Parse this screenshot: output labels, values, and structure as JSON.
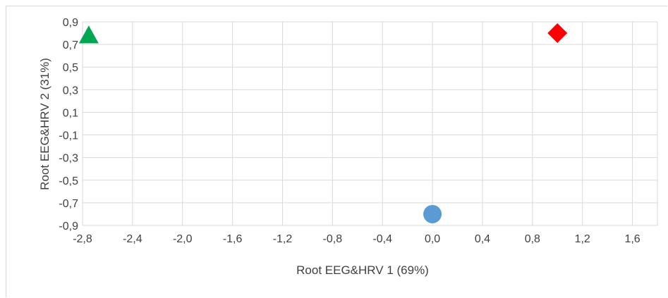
{
  "chart_data": {
    "type": "scatter",
    "xlabel": "Root EEG&HRV 1 (69%)",
    "ylabel": "Root EEG&HRV 2 (31%)",
    "xlim": [
      -2.8,
      1.8
    ],
    "ylim": [
      -0.9,
      0.9
    ],
    "x_ticks": [
      "-2,8",
      "-2,4",
      "-2,0",
      "-1,6",
      "-1,2",
      "-0,8",
      "-0,4",
      "0,0",
      "0,4",
      "0,8",
      "1,2",
      "1,6"
    ],
    "x_tick_values": [
      -2.8,
      -2.4,
      -2.0,
      -1.6,
      -1.2,
      -0.8,
      -0.4,
      0.0,
      0.4,
      0.8,
      1.2,
      1.6
    ],
    "y_ticks": [
      "0,9",
      "0,7",
      "0,5",
      "0,3",
      "0,1",
      "-0,1",
      "-0,3",
      "-0,5",
      "-0,7",
      "-0,9"
    ],
    "y_tick_values": [
      0.9,
      0.7,
      0.5,
      0.3,
      0.1,
      -0.1,
      -0.3,
      -0.5,
      -0.7,
      -0.9
    ],
    "grid": true,
    "series": [
      {
        "marker": "triangle",
        "color": "#00a651",
        "x": -2.75,
        "y": 0.78
      },
      {
        "marker": "diamond",
        "color": "#ff0000",
        "x": 1.0,
        "y": 0.8
      },
      {
        "marker": "circle",
        "color": "#5b9bd5",
        "x": 0.0,
        "y": -0.8
      }
    ]
  }
}
